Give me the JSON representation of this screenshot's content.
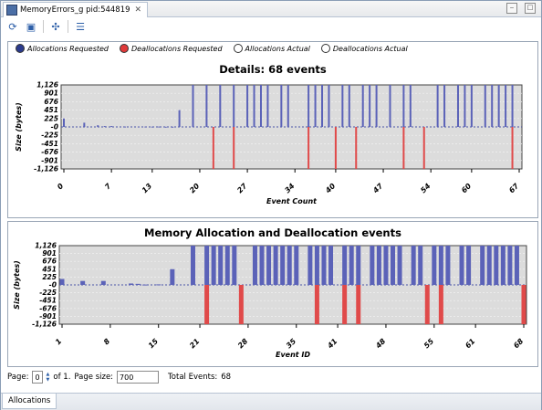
{
  "tab": {
    "title": "MemoryErrors_g pid:544819",
    "icon": "memory-view-icon"
  },
  "toolbar": {
    "items": [
      "refresh-icon",
      "export-icon",
      "crosshair-icon",
      "list-icon"
    ]
  },
  "legend": [
    {
      "label": "Allocations Requested",
      "color": "#2b3a8c",
      "filled": true
    },
    {
      "label": "Deallocations Requested",
      "color": "#e03a3a",
      "filled": true
    },
    {
      "label": "Allocations Actual",
      "color": "#ffffff",
      "filled": false
    },
    {
      "label": "Deallocations Actual",
      "color": "#ffffff",
      "filled": false
    }
  ],
  "colors": {
    "alloc": "#5b62b8",
    "dealloc": "#e04a4a",
    "plot_bg": "#dcdcdc"
  },
  "chart_data": [
    {
      "type": "bar",
      "title": "Details: 68 events",
      "xlabel": "Event Count",
      "ylabel": "Size (bytes)",
      "yticks": [
        "1,126",
        "901",
        "676",
        "451",
        "225",
        "-0",
        "-225",
        "-451",
        "-676",
        "-901",
        "-1,126"
      ],
      "ylim": [
        -1126,
        1126
      ],
      "xticks": [
        "0",
        "7",
        "13",
        "20",
        "27",
        "34",
        "40",
        "47",
        "54",
        "60",
        "67"
      ],
      "xlim": [
        0,
        67
      ],
      "series": [
        {
          "name": "Allocations Requested",
          "points": [
            [
              0,
              225
            ],
            [
              3,
              113
            ],
            [
              5,
              45
            ],
            [
              6,
              23
            ],
            [
              7,
              23
            ],
            [
              9,
              10
            ],
            [
              11,
              10
            ],
            [
              12,
              10
            ],
            [
              13,
              8
            ],
            [
              14,
              10
            ],
            [
              15,
              5
            ],
            [
              16,
              5
            ],
            [
              17,
              451
            ],
            [
              19,
              1126
            ],
            [
              21,
              1126
            ],
            [
              23,
              1126
            ],
            [
              25,
              1126
            ],
            [
              27,
              1126
            ],
            [
              28,
              1126
            ],
            [
              29,
              1126
            ],
            [
              30,
              1126
            ],
            [
              32,
              1126
            ],
            [
              33,
              1126
            ],
            [
              36,
              1126
            ],
            [
              37,
              1126
            ],
            [
              38,
              1126
            ],
            [
              39,
              1126
            ],
            [
              41,
              1126
            ],
            [
              42,
              1126
            ],
            [
              44,
              1126
            ],
            [
              45,
              1126
            ],
            [
              46,
              1126
            ],
            [
              48,
              1126
            ],
            [
              50,
              1126
            ],
            [
              51,
              1126
            ],
            [
              55,
              1126
            ],
            [
              56,
              1126
            ],
            [
              58,
              1126
            ],
            [
              59,
              1126
            ],
            [
              60,
              1126
            ],
            [
              62,
              1126
            ],
            [
              63,
              1126
            ],
            [
              64,
              1126
            ],
            [
              65,
              1126
            ],
            [
              66,
              1126
            ]
          ]
        },
        {
          "name": "Deallocations Requested",
          "points": [
            [
              22,
              -1126
            ],
            [
              25,
              -1126
            ],
            [
              36,
              -1126
            ],
            [
              40,
              -1126
            ],
            [
              43,
              -1126
            ],
            [
              50,
              -1126
            ],
            [
              53,
              -1126
            ],
            [
              66,
              -1126
            ]
          ]
        }
      ]
    },
    {
      "type": "bar",
      "title": "Memory Allocation and Deallocation events",
      "xlabel": "Event ID",
      "ylabel": "Size (bytes)",
      "yticks": [
        "1,126",
        "901",
        "676",
        "451",
        "225",
        "-0",
        "-225",
        "-451",
        "-676",
        "-901",
        "-1,126"
      ],
      "ylim": [
        -1126,
        1126
      ],
      "xticks": [
        "1",
        "8",
        "15",
        "21",
        "28",
        "35",
        "41",
        "48",
        "55",
        "61",
        "68"
      ],
      "xlim": [
        1,
        68
      ],
      "series": [
        {
          "name": "Allocations Requested",
          "points": [
            [
              1,
              170
            ],
            [
              4,
              113
            ],
            [
              7,
              113
            ],
            [
              11,
              40
            ],
            [
              12,
              30
            ],
            [
              13,
              10
            ],
            [
              15,
              15
            ],
            [
              17,
              451
            ],
            [
              20,
              1126
            ],
            [
              22,
              1126
            ],
            [
              23,
              1126
            ],
            [
              24,
              1126
            ],
            [
              25,
              1126
            ],
            [
              26,
              1126
            ],
            [
              29,
              1126
            ],
            [
              30,
              1126
            ],
            [
              31,
              1126
            ],
            [
              32,
              1126
            ],
            [
              33,
              1126
            ],
            [
              34,
              1126
            ],
            [
              35,
              1126
            ],
            [
              37,
              1126
            ],
            [
              38,
              1126
            ],
            [
              39,
              1126
            ],
            [
              40,
              1126
            ],
            [
              42,
              1126
            ],
            [
              43,
              1126
            ],
            [
              44,
              1126
            ],
            [
              46,
              1126
            ],
            [
              47,
              1126
            ],
            [
              48,
              1126
            ],
            [
              49,
              1126
            ],
            [
              50,
              1126
            ],
            [
              52,
              1126
            ],
            [
              53,
              1126
            ],
            [
              55,
              1126
            ],
            [
              56,
              1126
            ],
            [
              57,
              1126
            ],
            [
              59,
              1126
            ],
            [
              60,
              1126
            ],
            [
              62,
              1126
            ],
            [
              63,
              1126
            ],
            [
              64,
              1126
            ],
            [
              65,
              1126
            ],
            [
              66,
              1126
            ],
            [
              67,
              1126
            ]
          ]
        },
        {
          "name": "Deallocations Requested",
          "points": [
            [
              22,
              -1126
            ],
            [
              27,
              -1126
            ],
            [
              38,
              -1126
            ],
            [
              42,
              -1126
            ],
            [
              44,
              -1126
            ],
            [
              54,
              -1126
            ],
            [
              56,
              -1126
            ],
            [
              68,
              -1126
            ]
          ]
        }
      ]
    }
  ],
  "pager": {
    "page_label": "Page:",
    "page_value": "0",
    "of_label": "of 1.",
    "size_label": "Page size:",
    "size_value": "700",
    "total_label": "Total Events:",
    "total_value": "68"
  },
  "bottom_tab": {
    "label": "Allocations"
  }
}
